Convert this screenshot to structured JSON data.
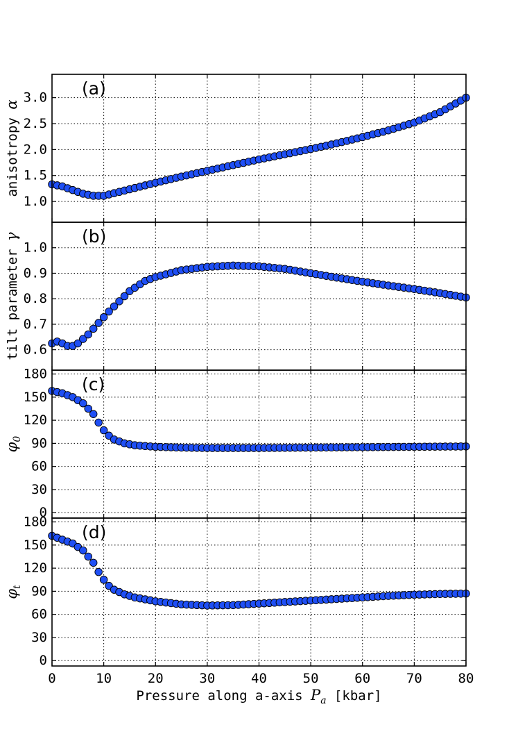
{
  "colors": {
    "marker": "#1f4ff5",
    "marker_edge": "#000000",
    "axes": "#000000",
    "grid": "#000000"
  },
  "chart_data": {
    "type": "scatter",
    "xlabel": {
      "text": "Pressure along a-axis ",
      "symbol": "P",
      "sub": "a",
      "unit": " [kbar]"
    },
    "xlim": [
      0,
      80
    ],
    "xticks": [
      0,
      10,
      20,
      30,
      40,
      50,
      60,
      70,
      80
    ],
    "grid": true,
    "panels": [
      {
        "label": "(a)",
        "ylabel": {
          "text": "anisotropy ",
          "symbol": "α",
          "sub": ""
        },
        "ylim": [
          0.6,
          3.45
        ],
        "yticks": [
          1.0,
          1.5,
          2.0,
          2.5,
          3.0
        ],
        "ytick_labels": [
          "1.0",
          "1.5",
          "2.0",
          "2.5",
          "3.0"
        ],
        "curve": [
          [
            0,
            1.33
          ],
          [
            2,
            1.29
          ],
          [
            4,
            1.22
          ],
          [
            6,
            1.15
          ],
          [
            8,
            1.11
          ],
          [
            10,
            1.11
          ],
          [
            12,
            1.16
          ],
          [
            16,
            1.26
          ],
          [
            20,
            1.36
          ],
          [
            25,
            1.48
          ],
          [
            30,
            1.59
          ],
          [
            35,
            1.7
          ],
          [
            40,
            1.81
          ],
          [
            45,
            1.91
          ],
          [
            50,
            2.01
          ],
          [
            55,
            2.12
          ],
          [
            60,
            2.24
          ],
          [
            65,
            2.37
          ],
          [
            70,
            2.52
          ],
          [
            75,
            2.72
          ],
          [
            80,
            3.0
          ]
        ]
      },
      {
        "label": "(b)",
        "ylabel": {
          "text": "tilt parameter ",
          "symbol": "γ",
          "sub": ""
        },
        "ylim": [
          0.52,
          1.1
        ],
        "yticks": [
          0.6,
          0.7,
          0.8,
          0.9,
          1.0
        ],
        "ytick_labels": [
          "0.6",
          "0.7",
          "0.8",
          "0.9",
          "1.0"
        ],
        "curve": [
          [
            0,
            0.625
          ],
          [
            1,
            0.632
          ],
          [
            2,
            0.625
          ],
          [
            3,
            0.615
          ],
          [
            4,
            0.615
          ],
          [
            5,
            0.625
          ],
          [
            7,
            0.66
          ],
          [
            9,
            0.705
          ],
          [
            11,
            0.75
          ],
          [
            13,
            0.79
          ],
          [
            15,
            0.83
          ],
          [
            18,
            0.87
          ],
          [
            20,
            0.885
          ],
          [
            25,
            0.912
          ],
          [
            30,
            0.925
          ],
          [
            35,
            0.93
          ],
          [
            40,
            0.927
          ],
          [
            45,
            0.917
          ],
          [
            50,
            0.9
          ],
          [
            55,
            0.883
          ],
          [
            60,
            0.867
          ],
          [
            65,
            0.852
          ],
          [
            70,
            0.838
          ],
          [
            75,
            0.822
          ],
          [
            80,
            0.805
          ]
        ]
      },
      {
        "label": "(c)",
        "ylabel": {
          "text": "",
          "symbol": "φ",
          "sub": "0"
        },
        "ylim": [
          -7,
          185
        ],
        "yticks": [
          0,
          30,
          60,
          90,
          120,
          150,
          180
        ],
        "ytick_labels": [
          "0",
          "30",
          "60",
          "90",
          "120",
          "150",
          "180"
        ],
        "curve": [
          [
            0,
            158
          ],
          [
            2,
            155
          ],
          [
            4,
            150
          ],
          [
            6,
            142
          ],
          [
            8,
            128
          ],
          [
            9,
            117
          ],
          [
            10,
            107
          ],
          [
            11,
            100
          ],
          [
            12,
            95
          ],
          [
            14,
            90
          ],
          [
            16,
            87.5
          ],
          [
            20,
            85.5
          ],
          [
            25,
            84.5
          ],
          [
            30,
            84
          ],
          [
            40,
            84
          ],
          [
            50,
            84.5
          ],
          [
            60,
            85
          ],
          [
            70,
            85.5
          ],
          [
            80,
            86
          ]
        ]
      },
      {
        "label": "(d)",
        "ylabel": {
          "text": "",
          "symbol": "φ",
          "sub": "t"
        },
        "ylim": [
          -7,
          185
        ],
        "yticks": [
          0,
          30,
          60,
          90,
          120,
          150,
          180
        ],
        "ytick_labels": [
          "0",
          "30",
          "60",
          "90",
          "120",
          "150",
          "180"
        ],
        "curve": [
          [
            0,
            162
          ],
          [
            2,
            157
          ],
          [
            4,
            152
          ],
          [
            6,
            143
          ],
          [
            8,
            127
          ],
          [
            9,
            115
          ],
          [
            10,
            105
          ],
          [
            11,
            97
          ],
          [
            12,
            92
          ],
          [
            14,
            86
          ],
          [
            16,
            82
          ],
          [
            20,
            77
          ],
          [
            25,
            73
          ],
          [
            30,
            71.5
          ],
          [
            35,
            72
          ],
          [
            40,
            74
          ],
          [
            45,
            76
          ],
          [
            50,
            78
          ],
          [
            55,
            80
          ],
          [
            60,
            82
          ],
          [
            65,
            84
          ],
          [
            70,
            85.5
          ],
          [
            75,
            86.5
          ],
          [
            80,
            87
          ]
        ]
      }
    ]
  }
}
